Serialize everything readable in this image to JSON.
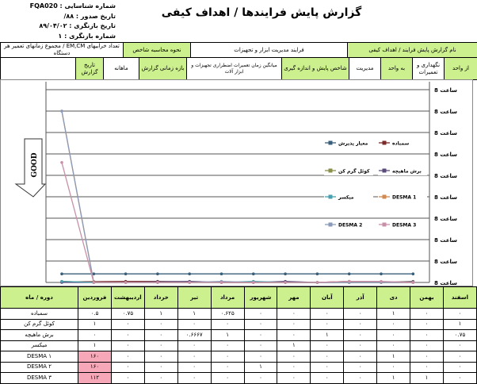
{
  "meta": {
    "id": "شماره شناسایی : FQA020",
    "issue": "تاریخ صدور : ۸۸/",
    "rev_date": "تاریخ بازنگری : ۸۹/۰۴/۰۲",
    "rev_no": "شماره بازنگری : ۱"
  },
  "title": "گزارش پایش فرایندها / اهداف کیفی",
  "header": {
    "report_name_label": "نام گزارش پایش فرایند / اهداف کیفی",
    "process": "فرایند مدیریت ابزار و تجهیزات",
    "calc_label": "نحوه محاسبه شاخص",
    "calc": "تعداد خرابیهای EM,CM / مجموع زمانهای تعمیر هر دستگاه",
    "from_label": "از واحد",
    "from": "نگهداری و تعمیرات",
    "to_label": "به واحد",
    "to": "مدیریت",
    "index_label": "شاخص پایش و اندازه گیری",
    "index": "میانگین زمان تعمیرات اضطراری تجهیزات و ابزار آلات",
    "period_label": "بازه زمانی گزارش",
    "period": "ماهانه",
    "date_label": "تاریخ گزارش",
    "date": ""
  },
  "good_label": "GOOD",
  "chart_data": {
    "type": "line",
    "x": [
      "فروردین",
      "اردیبهشت",
      "خرداد",
      "تیر",
      "مرداد",
      "شهریور",
      "مهر",
      "آبان",
      "آذر",
      "دی",
      "بهمن",
      "اسفند"
    ],
    "ylim": [
      0,
      180
    ],
    "ytick_labels": [
      "8 ساعت",
      "8 ساعت",
      "8 ساعت",
      "8 ساعت",
      "8 ساعت",
      "8 ساعت",
      "8 ساعت",
      "8 ساعت",
      "8 ساعت",
      "8 ساعت"
    ],
    "grid": true,
    "legend": "inside-center",
    "series": [
      {
        "name": "معیار پذیرش",
        "color": "#3a5f7a",
        "values": [
          8,
          8,
          8,
          8,
          8,
          8,
          8,
          8,
          8,
          8,
          8,
          8
        ]
      },
      {
        "name": "سمباده",
        "color": "#7a2a2a",
        "values": [
          0.5,
          0.75,
          1,
          1,
          0.625,
          0,
          0,
          0,
          0,
          1,
          0,
          0
        ]
      },
      {
        "name": "کوئل گرم کن",
        "color": "#8a8f4a",
        "values": [
          1,
          0,
          0,
          0,
          0,
          0,
          0,
          0,
          0,
          0,
          0,
          1
        ]
      },
      {
        "name": "برش ماهیچه",
        "color": "#5a4a7a",
        "values": [
          0,
          0,
          0,
          0.6667,
          1,
          0,
          0,
          1,
          0,
          0,
          0,
          0.75
        ]
      },
      {
        "name": "میکسر",
        "color": "#4aa0b0",
        "values": [
          1,
          0,
          0,
          0,
          0,
          0,
          1,
          0,
          0,
          0,
          0,
          0
        ]
      },
      {
        "name": "DESMA 1",
        "color": "#d08a50",
        "values": [
          160,
          0,
          0,
          0,
          0,
          0,
          0,
          0,
          0,
          1,
          0,
          0
        ]
      },
      {
        "name": "DESMA 2",
        "color": "#8a9ab8",
        "values": [
          160,
          0,
          0,
          0,
          0,
          1,
          0,
          0,
          0,
          0,
          0,
          0
        ]
      },
      {
        "name": "DESMA 3",
        "color": "#c890a8",
        "values": [
          112,
          0,
          0,
          0,
          0,
          0,
          0,
          0,
          0,
          1,
          1,
          0
        ]
      }
    ]
  },
  "table": {
    "corner": "دوره / ماه",
    "months": [
      "فروردین",
      "اردیبهشت",
      "خرداد",
      "تیر",
      "مرداد",
      "شهریور",
      "مهر",
      "آبان",
      "آذر",
      "دی",
      "بهمن",
      "اسفند"
    ],
    "rows": [
      {
        "label": "سمباده",
        "cells": [
          "۰.۵",
          "۰.۷۵",
          "۱",
          "۱",
          "۰.۶۲۵",
          "۰",
          "۰",
          "۰",
          "۰",
          "۱",
          "۰",
          "۰"
        ]
      },
      {
        "label": "کوئل گرم کن",
        "cells": [
          "۱",
          "۰",
          "۰",
          "۰",
          "۰",
          "۰",
          "۰",
          "۰",
          "۰",
          "۰",
          "۰",
          "۱"
        ]
      },
      {
        "label": "برش ماهیچه",
        "cells": [
          "۰",
          "۰",
          "۰",
          "۰.۶۶۶۷",
          "۱",
          "۰",
          "۰",
          "۱",
          "۰",
          "۰",
          "۰",
          "۰.۷۵"
        ]
      },
      {
        "label": "میکسر",
        "cells": [
          "۱",
          "۰",
          "۰",
          "۰",
          "۰",
          "۰",
          "۱",
          "۰",
          "۰",
          "۰",
          "۰",
          "۰"
        ]
      },
      {
        "label": "DESMA ۱",
        "cells": [
          "۱۶۰",
          "۰",
          "۰",
          "۰",
          "۰",
          "۰",
          "۰",
          "۰",
          "۰",
          "۱",
          "۰",
          "۰"
        ],
        "alert": true
      },
      {
        "label": "DESMA ۲",
        "cells": [
          "۱۶۰",
          "۰",
          "۰",
          "۰",
          "۰",
          "۱",
          "۰",
          "۰",
          "۰",
          "۰",
          "۰",
          "۰"
        ],
        "alert": true
      },
      {
        "label": "DESMA ۳",
        "cells": [
          "۱۱۲",
          "۰",
          "۰",
          "۰",
          "۰",
          "۰",
          "۰",
          "۰",
          "۰",
          "۱",
          "۱",
          "۰"
        ],
        "alert": true
      }
    ]
  }
}
